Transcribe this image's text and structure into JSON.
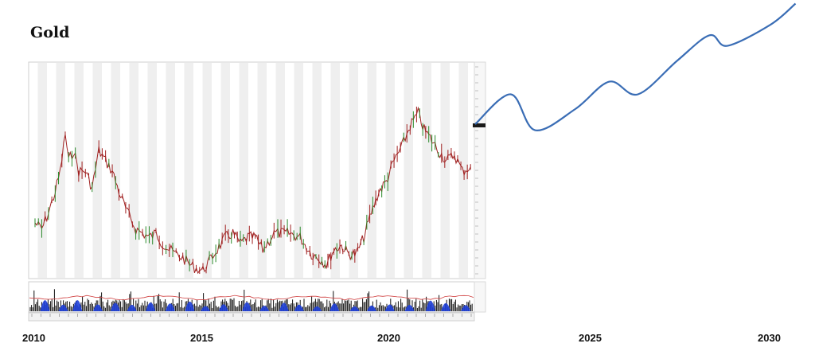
{
  "title": "Gold",
  "chart_data": {
    "type": "line",
    "title": "Gold",
    "x_axis_labels": [
      "2010",
      "2015",
      "2020",
      "2025",
      "2030"
    ],
    "xlabel": "",
    "ylabel": "",
    "grid": true,
    "historical_price": {
      "x": [
        2010.0,
        2010.2,
        2010.4,
        2010.6,
        2010.75,
        2010.9,
        2011.0,
        2011.15,
        2011.3,
        2011.5,
        2011.7,
        2011.9,
        2012.1,
        2012.3,
        2012.5,
        2012.75,
        2013.0,
        2013.2,
        2013.4,
        2013.6,
        2013.8,
        2014.0,
        2014.2,
        2014.4,
        2014.6,
        2014.8,
        2015.0,
        2015.3,
        2015.6,
        2015.8,
        2016.0,
        2016.2,
        2016.4,
        2016.6,
        2016.9,
        2017.0,
        2017.3,
        2017.6,
        2017.9,
        2018.1,
        2018.3,
        2018.5,
        2018.7,
        2018.9,
        2019.1,
        2019.3,
        2019.5,
        2019.7,
        2019.9,
        2020.1,
        2020.3,
        2020.5,
        2020.7,
        2020.85,
        2021.0,
        2021.2,
        2021.4,
        2021.6,
        2021.8,
        2022.0
      ],
      "y": [
        0.25,
        0.22,
        0.3,
        0.4,
        0.5,
        0.68,
        0.55,
        0.6,
        0.5,
        0.5,
        0.42,
        0.6,
        0.55,
        0.5,
        0.4,
        0.3,
        0.22,
        0.2,
        0.18,
        0.2,
        0.15,
        0.12,
        0.1,
        0.08,
        0.05,
        0.03,
        0.02,
        0.1,
        0.18,
        0.2,
        0.15,
        0.18,
        0.18,
        0.12,
        0.2,
        0.2,
        0.2,
        0.18,
        0.1,
        0.08,
        0.05,
        0.12,
        0.14,
        0.1,
        0.1,
        0.18,
        0.3,
        0.4,
        0.45,
        0.55,
        0.62,
        0.72,
        0.78,
        0.7,
        0.66,
        0.6,
        0.55,
        0.58,
        0.5,
        0.52
      ]
    },
    "forecast_curve": {
      "x": [
        2022.0,
        2023.0,
        2023.6,
        2024.6,
        2025.5,
        2026.3,
        2027.4,
        2028.3,
        2028.8,
        2030.0,
        2030.7
      ],
      "y": [
        0.52,
        0.62,
        0.45,
        0.55,
        0.68,
        0.62,
        0.78,
        0.9,
        0.85,
        0.95,
        1.05
      ]
    },
    "volume_panel": true
  }
}
